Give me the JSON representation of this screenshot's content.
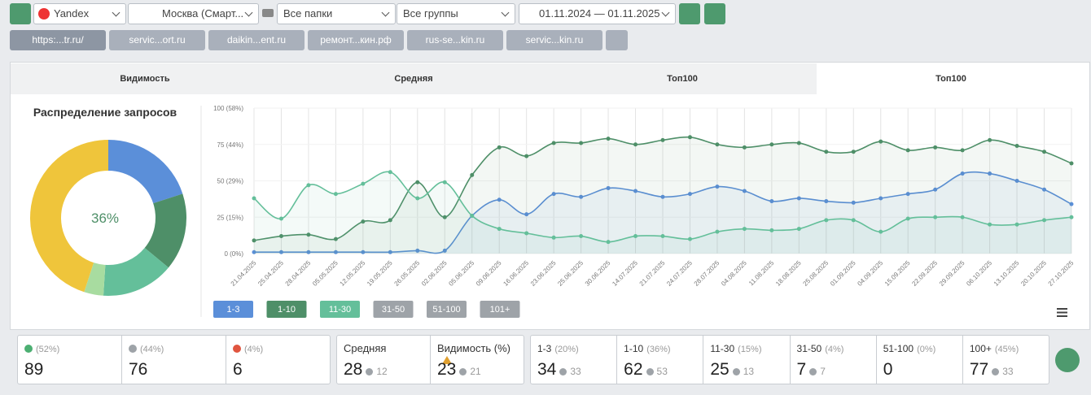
{
  "toolbar": {
    "search_engine": "Yandex",
    "region": "Москва (Смарт...",
    "folders": "Все папки",
    "groups": "Все группы",
    "date_range": "01.11.2024 — 01.11.2025"
  },
  "site_tabs": [
    "https:...tr.ru/",
    "servic...ort.ru",
    "daikin...ent.ru",
    "ремонт...кин.рф",
    "rus-se...kin.ru",
    "servic...kin.ru"
  ],
  "view_tabs": [
    "Видимость",
    "Средняя",
    "Топ100",
    "Топ100"
  ],
  "chart_data": [
    {
      "type": "pie",
      "title": "Распределение запросов",
      "center_label": "36%",
      "values": [
        20,
        16,
        15,
        4,
        0,
        45
      ],
      "colors": [
        "#5b8fd9",
        "#4e8f68",
        "#64bf9a",
        "#a8dca0",
        "#d9d9d9",
        "#efc53b"
      ]
    },
    {
      "type": "line",
      "x": [
        "21.04.2025",
        "25.04.2025",
        "28.04.2025",
        "05.05.2025",
        "12.05.2025",
        "19.05.2025",
        "26.05.2025",
        "02.06.2025",
        "05.06.2025",
        "09.06.2025",
        "16.06.2025",
        "23.06.2025",
        "25.06.2025",
        "30.06.2025",
        "14.07.2025",
        "21.07.2025",
        "24.07.2025",
        "28.07.2025",
        "04.08.2025",
        "11.08.2025",
        "18.08.2025",
        "25.08.2025",
        "01.09.2025",
        "04.09.2025",
        "15.09.2025",
        "22.09.2025",
        "29.09.2025",
        "06.10.2025",
        "13.10.2025",
        "20.10.2025",
        "27.10.2025"
      ],
      "ylim": [
        0,
        100
      ],
      "yticks": [
        {
          "value": 0,
          "label": "0 (0%)"
        },
        {
          "value": 25,
          "label": "25 (15%)"
        },
        {
          "value": 50,
          "label": "50 (29%)"
        },
        {
          "value": 75,
          "label": "75 (44%)"
        },
        {
          "value": 100,
          "label": "100 (58%)"
        }
      ],
      "series": [
        {
          "name": "1-3",
          "color": "#5b8fd9",
          "values": [
            1,
            1,
            1,
            1,
            1,
            1,
            2,
            2,
            26,
            37,
            27,
            41,
            39,
            45,
            43,
            39,
            41,
            46,
            43,
            36,
            38,
            36,
            35,
            38,
            41,
            44,
            55,
            55,
            50,
            44,
            34
          ]
        },
        {
          "name": "1-10",
          "color": "#4e8f68",
          "values": [
            9,
            12,
            13,
            10,
            22,
            23,
            49,
            25,
            54,
            73,
            67,
            76,
            76,
            79,
            75,
            78,
            80,
            75,
            73,
            75,
            76,
            70,
            70,
            77,
            71,
            73,
            71,
            78,
            74,
            70,
            62
          ]
        },
        {
          "name": "11-30",
          "color": "#64bf9a",
          "values": [
            38,
            24,
            47,
            41,
            48,
            56,
            38,
            49,
            26,
            17,
            14,
            11,
            12,
            8,
            12,
            12,
            10,
            15,
            17,
            16,
            17,
            23,
            23,
            15,
            24,
            25,
            25,
            20,
            20,
            23,
            25
          ]
        }
      ],
      "inactive_series": [
        {
          "name": "31-50",
          "color": "#9ea3a8"
        },
        {
          "name": "51-100",
          "color": "#9ea3a8"
        },
        {
          "name": "101+",
          "color": "#9ea3a8"
        }
      ]
    }
  ],
  "summary": {
    "positions": [
      {
        "share": "(52%)",
        "value": 89,
        "color": "#4caf72"
      },
      {
        "share": "(44%)",
        "value": 76,
        "color": "#9ea3a8"
      },
      {
        "share": "(4%)",
        "value": 6,
        "color": "#e0553f"
      }
    ],
    "metrics": [
      {
        "label": "Средняя",
        "value": 28,
        "delta": 12
      },
      {
        "label": "Видимость (%)",
        "value": 23,
        "delta": 21
      }
    ],
    "ranges": [
      {
        "label": "1-3",
        "share": "(20%)",
        "value": 34,
        "delta": 33
      },
      {
        "label": "1-10",
        "share": "(36%)",
        "value": 62,
        "delta": 53
      },
      {
        "label": "11-30",
        "share": "(15%)",
        "value": 25,
        "delta": 13
      },
      {
        "label": "31-50",
        "share": "(4%)",
        "value": 7,
        "delta": 7
      },
      {
        "label": "51-100",
        "share": "(0%)",
        "value": 0
      },
      {
        "label": "100+",
        "share": "(45%)",
        "value": 77,
        "delta": 33
      }
    ]
  }
}
